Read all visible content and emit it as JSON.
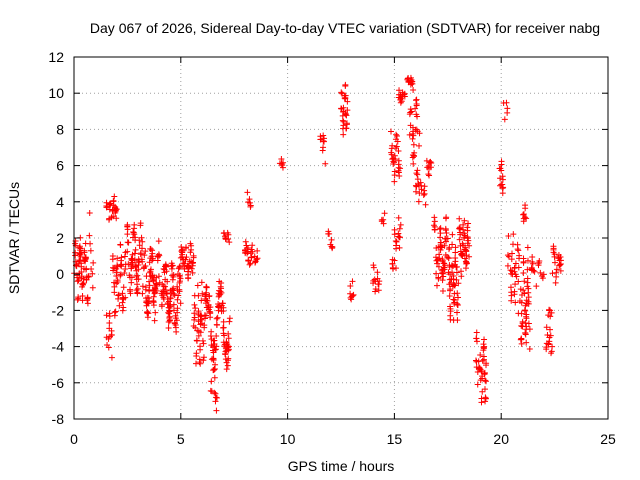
{
  "chart_data": {
    "type": "scatter",
    "title": "Day 067 of 2026, Sidereal Day-to-day VTEC variation (SDTVAR) for receiver nabg",
    "xlabel": "GPS time / hours",
    "ylabel": "SDTVAR / TECUs",
    "xlim": [
      0,
      25
    ],
    "ylim": [
      -8,
      12
    ],
    "xticks": [
      0,
      5,
      10,
      15,
      20,
      25
    ],
    "yticks": [
      -8,
      -6,
      -4,
      -2,
      0,
      2,
      4,
      6,
      8,
      10,
      12
    ],
    "grid": true,
    "marker": "+",
    "color": "#ff0000",
    "clusters": [
      {
        "x0": 0.0,
        "x1": 0.7,
        "center": 0.2,
        "spread": 1.4,
        "amp": 1.2,
        "freq": 3.0,
        "n": 70
      },
      {
        "x0": 0.7,
        "x1": 0.9,
        "center": 1.0,
        "spread": 2.5,
        "amp": 1.5,
        "freq": 2.0,
        "n": 8
      },
      {
        "x0": 1.5,
        "x1": 1.8,
        "center": -3.5,
        "spread": 1.5,
        "amp": 1.0,
        "freq": 4.0,
        "n": 14
      },
      {
        "x0": 1.5,
        "x1": 2.0,
        "center": 3.6,
        "spread": 0.9,
        "amp": 0.4,
        "freq": 3.0,
        "n": 28
      },
      {
        "x0": 1.8,
        "x1": 2.4,
        "center": -0.5,
        "spread": 2.0,
        "amp": 1.5,
        "freq": 3.5,
        "n": 45
      },
      {
        "x0": 2.4,
        "x1": 3.2,
        "center": 0.8,
        "spread": 1.8,
        "amp": 1.2,
        "freq": 2.5,
        "n": 70
      },
      {
        "x0": 3.2,
        "x1": 4.2,
        "center": -0.3,
        "spread": 2.0,
        "amp": 1.3,
        "freq": 3.0,
        "n": 90
      },
      {
        "x0": 4.2,
        "x1": 5.0,
        "center": -1.2,
        "spread": 1.8,
        "amp": 1.2,
        "freq": 2.5,
        "n": 80
      },
      {
        "x0": 5.0,
        "x1": 5.6,
        "center": 0.8,
        "spread": 0.9,
        "amp": 0.6,
        "freq": 3.0,
        "n": 45
      },
      {
        "x0": 5.6,
        "x1": 6.1,
        "center": -2.8,
        "spread": 2.2,
        "amp": 1.5,
        "freq": 3.0,
        "n": 45
      },
      {
        "x0": 6.1,
        "x1": 7.3,
        "center": -2.8,
        "spread": 1.8,
        "amp": 1.8,
        "freq": 2.0,
        "n": 110
      },
      {
        "x0": 6.4,
        "x1": 6.7,
        "center": -6.8,
        "spread": 1.2,
        "amp": 0.5,
        "freq": 2.0,
        "n": 10
      },
      {
        "x0": 7.0,
        "x1": 7.3,
        "center": 2.0,
        "spread": 0.5,
        "amp": 0.2,
        "freq": 2.0,
        "n": 10
      },
      {
        "x0": 8.0,
        "x1": 8.6,
        "center": 1.2,
        "spread": 0.8,
        "amp": 0.4,
        "freq": 2.0,
        "n": 28
      },
      {
        "x0": 8.1,
        "x1": 8.3,
        "center": 3.8,
        "spread": 0.9,
        "amp": 0.4,
        "freq": 2.0,
        "n": 6
      },
      {
        "x0": 9.6,
        "x1": 9.8,
        "center": 6.1,
        "spread": 0.5,
        "amp": 0.2,
        "freq": 2.0,
        "n": 6
      },
      {
        "x0": 11.5,
        "x1": 11.8,
        "center": 7.0,
        "spread": 1.2,
        "amp": 0.4,
        "freq": 2.0,
        "n": 10
      },
      {
        "x0": 11.9,
        "x1": 12.1,
        "center": 1.9,
        "spread": 0.8,
        "amp": 0.3,
        "freq": 2.0,
        "n": 8
      },
      {
        "x0": 12.5,
        "x1": 12.8,
        "center": 9.2,
        "spread": 1.6,
        "amp": 0.8,
        "freq": 2.0,
        "n": 30
      },
      {
        "x0": 12.9,
        "x1": 13.1,
        "center": -1.0,
        "spread": 0.8,
        "amp": 0.3,
        "freq": 2.0,
        "n": 8
      },
      {
        "x0": 14.0,
        "x1": 14.3,
        "center": -0.2,
        "spread": 1.0,
        "amp": 0.5,
        "freq": 2.0,
        "n": 14
      },
      {
        "x0": 14.4,
        "x1": 14.6,
        "center": 3.0,
        "spread": 0.6,
        "amp": 0.2,
        "freq": 2.0,
        "n": 5
      },
      {
        "x0": 14.8,
        "x1": 15.3,
        "center": 6.5,
        "spread": 1.4,
        "amp": 0.8,
        "freq": 2.0,
        "n": 30
      },
      {
        "x0": 14.9,
        "x1": 15.1,
        "center": 0.4,
        "spread": 1.0,
        "amp": 0.3,
        "freq": 2.0,
        "n": 8
      },
      {
        "x0": 15.0,
        "x1": 15.3,
        "center": 2.5,
        "spread": 2.5,
        "amp": 0.8,
        "freq": 2.0,
        "n": 14
      },
      {
        "x0": 15.2,
        "x1": 15.5,
        "center": 9.9,
        "spread": 0.6,
        "amp": 0.2,
        "freq": 2.0,
        "n": 14
      },
      {
        "x0": 15.6,
        "x1": 15.9,
        "center": 10.5,
        "spread": 0.5,
        "amp": 0.2,
        "freq": 2.0,
        "n": 14
      },
      {
        "x0": 15.7,
        "x1": 16.2,
        "center": 8.0,
        "spread": 2.0,
        "amp": 1.0,
        "freq": 2.0,
        "n": 30
      },
      {
        "x0": 16.0,
        "x1": 16.5,
        "center": 4.8,
        "spread": 1.2,
        "amp": 0.5,
        "freq": 2.0,
        "n": 20
      },
      {
        "x0": 16.5,
        "x1": 16.8,
        "center": 6.0,
        "spread": 0.8,
        "amp": 0.3,
        "freq": 2.0,
        "n": 10
      },
      {
        "x0": 16.8,
        "x1": 17.5,
        "center": 1.0,
        "spread": 2.0,
        "amp": 1.2,
        "freq": 2.5,
        "n": 60
      },
      {
        "x0": 17.5,
        "x1": 18.0,
        "center": -0.2,
        "spread": 2.5,
        "amp": 1.5,
        "freq": 3.0,
        "n": 55
      },
      {
        "x0": 18.0,
        "x1": 18.5,
        "center": 1.5,
        "spread": 1.6,
        "amp": 1.0,
        "freq": 2.5,
        "n": 50
      },
      {
        "x0": 18.8,
        "x1": 19.3,
        "center": -5.2,
        "spread": 2.2,
        "amp": 1.0,
        "freq": 3.0,
        "n": 45
      },
      {
        "x0": 19.9,
        "x1": 20.1,
        "center": 5.3,
        "spread": 1.8,
        "amp": 0.6,
        "freq": 2.0,
        "n": 14
      },
      {
        "x0": 20.1,
        "x1": 20.3,
        "center": 9.0,
        "spread": 0.9,
        "amp": 0.3,
        "freq": 2.0,
        "n": 5
      },
      {
        "x0": 20.3,
        "x1": 20.8,
        "center": 0.3,
        "spread": 2.2,
        "amp": 1.0,
        "freq": 2.5,
        "n": 30
      },
      {
        "x0": 20.8,
        "x1": 21.4,
        "center": -1.5,
        "spread": 3.0,
        "amp": 1.5,
        "freq": 3.0,
        "n": 55
      },
      {
        "x0": 21.0,
        "x1": 21.2,
        "center": 3.2,
        "spread": 0.8,
        "amp": 0.3,
        "freq": 2.0,
        "n": 8
      },
      {
        "x0": 21.4,
        "x1": 22.0,
        "center": 0.2,
        "spread": 1.0,
        "amp": 0.5,
        "freq": 2.0,
        "n": 18
      },
      {
        "x0": 22.1,
        "x1": 22.4,
        "center": -3.8,
        "spread": 1.0,
        "amp": 0.4,
        "freq": 2.0,
        "n": 14
      },
      {
        "x0": 22.2,
        "x1": 22.4,
        "center": -2.0,
        "spread": 0.8,
        "amp": 0.3,
        "freq": 2.0,
        "n": 6
      },
      {
        "x0": 22.4,
        "x1": 22.8,
        "center": 0.6,
        "spread": 1.4,
        "amp": 0.5,
        "freq": 2.0,
        "n": 22
      }
    ]
  }
}
